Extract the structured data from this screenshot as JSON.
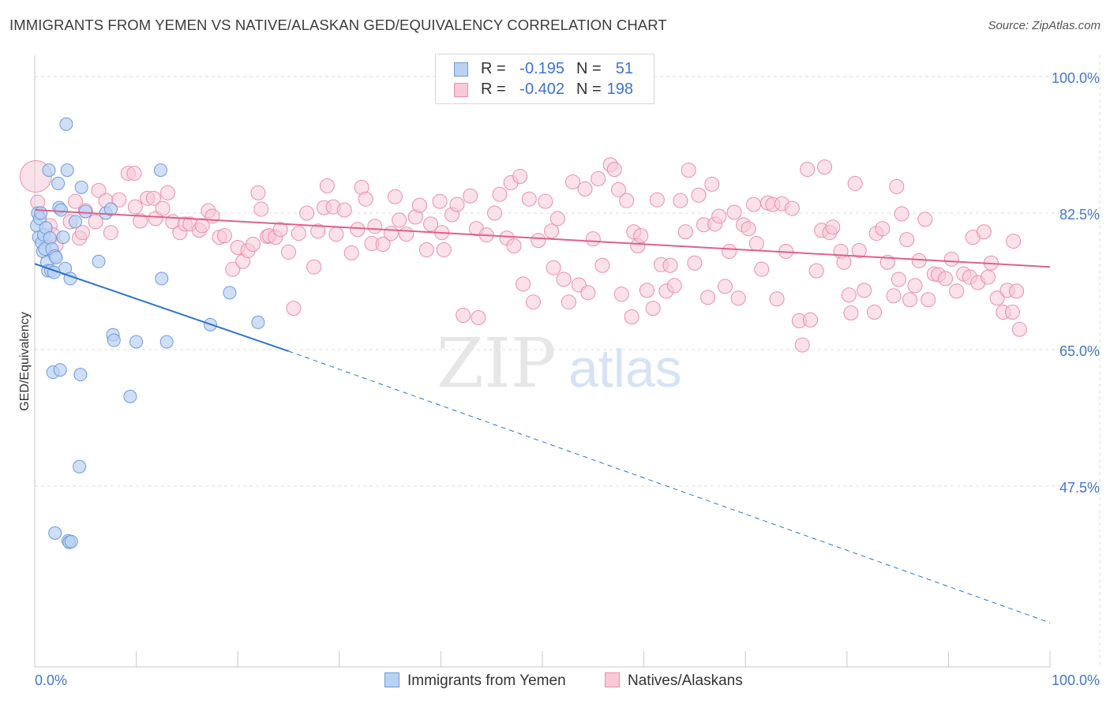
{
  "title": "IMMIGRANTS FROM YEMEN VS NATIVE/ALASKAN GED/EQUIVALENCY CORRELATION CHART",
  "source": "Source: ZipAtlas.com",
  "watermark": {
    "zip": "ZIP",
    "atlas": "atlas"
  },
  "legend": {
    "series1": {
      "r_label": "R =",
      "r_value": "-0.195",
      "n_label": "N =",
      "n_value": "51"
    },
    "series2": {
      "r_label": "R =",
      "r_value": "-0.402",
      "n_label": "N =",
      "n_value": "198"
    }
  },
  "bottom_legend": {
    "series1": "Immigrants from Yemen",
    "series2": "Natives/Alaskans"
  },
  "x_axis": {
    "min_label": "0.0%",
    "max_label": "100.0%"
  },
  "chart_data": {
    "type": "scatter",
    "ylabel": "GED/Equivalency",
    "xlim": [
      0,
      100
    ],
    "ylim": [
      30,
      103
    ],
    "y_ticks": [
      {
        "value": 100.0,
        "label": "100.0%"
      },
      {
        "value": 82.5,
        "label": "82.5%"
      },
      {
        "value": 65.0,
        "label": "65.0%"
      },
      {
        "value": 47.5,
        "label": "47.5%"
      }
    ],
    "grid": true,
    "legend_position": "top-center",
    "colors": {
      "blue_fill": "#b9d2f3",
      "blue_stroke": "#6f9ad9",
      "blue_line": "#2f74d0",
      "pink_fill": "#f8c9d7",
      "pink_stroke": "#ea8fab",
      "pink_line": "#e0608a",
      "grid": "#dddddd",
      "axis_label": "#4477cc"
    },
    "trendlines": [
      {
        "series": "Immigrants from Yemen",
        "x": [
          0,
          25
        ],
        "y": [
          76.0,
          64.8
        ],
        "dashed_extension_to": [
          100,
          30.0
        ]
      },
      {
        "series": "Natives/Alaskans",
        "x": [
          0,
          100
        ],
        "y": [
          82.9,
          75.6
        ]
      }
    ],
    "series": [
      {
        "name": "Immigrants from Yemen",
        "points": [
          [
            0.2,
            80.9
          ],
          [
            0.3,
            82.5
          ],
          [
            0.4,
            79.4
          ],
          [
            0.5,
            81.8
          ],
          [
            0.6,
            82.5
          ],
          [
            0.7,
            78.7
          ],
          [
            0.8,
            77.6
          ],
          [
            0.9,
            79.7
          ],
          [
            1.0,
            77.9
          ],
          [
            1.1,
            80.6
          ],
          [
            1.2,
            76.2
          ],
          [
            1.3,
            75.1
          ],
          [
            1.4,
            88.0
          ],
          [
            1.5,
            79.3
          ],
          [
            1.6,
            75.1
          ],
          [
            1.7,
            77.9
          ],
          [
            1.8,
            62.1
          ],
          [
            1.9,
            74.9
          ],
          [
            2.0,
            77.0
          ],
          [
            2.1,
            76.8
          ],
          [
            2.3,
            86.3
          ],
          [
            2.4,
            83.2
          ],
          [
            2.5,
            62.4
          ],
          [
            2.6,
            82.9
          ],
          [
            2.8,
            79.4
          ],
          [
            3.0,
            75.4
          ],
          [
            3.1,
            93.9
          ],
          [
            3.2,
            88.0
          ],
          [
            3.3,
            40.5
          ],
          [
            3.4,
            40.3
          ],
          [
            3.5,
            74.1
          ],
          [
            3.6,
            40.4
          ],
          [
            2.0,
            41.5
          ],
          [
            4.0,
            81.4
          ],
          [
            4.5,
            61.8
          ],
          [
            4.6,
            85.8
          ],
          [
            4.4,
            50.0
          ],
          [
            6.3,
            76.3
          ],
          [
            7.0,
            82.5
          ],
          [
            7.7,
            66.9
          ],
          [
            7.8,
            66.2
          ],
          [
            9.4,
            59.0
          ],
          [
            10.0,
            66.0
          ],
          [
            12.4,
            88.0
          ],
          [
            12.5,
            74.1
          ],
          [
            13.0,
            66.0
          ],
          [
            17.3,
            68.2
          ],
          [
            19.2,
            72.3
          ],
          [
            22.0,
            68.5
          ],
          [
            7.5,
            83.0
          ],
          [
            5.0,
            82.7
          ]
        ]
      },
      {
        "name": "Natives/Alaskans",
        "points": [
          [
            0.1,
            87.2
          ],
          [
            0.3,
            83.9
          ],
          [
            1.5,
            80.9
          ],
          [
            1.8,
            79.7
          ],
          [
            2.1,
            78.4
          ],
          [
            3.5,
            81.4
          ],
          [
            4.0,
            84.0
          ],
          [
            4.4,
            79.3
          ],
          [
            4.7,
            80.0
          ],
          [
            5.0,
            82.8
          ],
          [
            6.0,
            81.4
          ],
          [
            6.3,
            85.4
          ],
          [
            7.0,
            84.1
          ],
          [
            7.5,
            80.0
          ],
          [
            8.3,
            84.2
          ],
          [
            9.2,
            87.6
          ],
          [
            9.8,
            87.6
          ],
          [
            9.9,
            83.3
          ],
          [
            10.4,
            81.5
          ],
          [
            11.1,
            84.4
          ],
          [
            11.7,
            84.4
          ],
          [
            11.9,
            81.8
          ],
          [
            12.6,
            83.1
          ],
          [
            13.1,
            85.1
          ],
          [
            13.6,
            81.4
          ],
          [
            14.3,
            80.0
          ],
          [
            14.8,
            81.1
          ],
          [
            15.3,
            81.1
          ],
          [
            16.2,
            80.3
          ],
          [
            16.5,
            80.9
          ],
          [
            17.1,
            82.8
          ],
          [
            17.5,
            82.1
          ],
          [
            18.2,
            79.4
          ],
          [
            18.7,
            79.6
          ],
          [
            19.5,
            75.3
          ],
          [
            20.0,
            78.1
          ],
          [
            20.5,
            76.3
          ],
          [
            21.0,
            77.7
          ],
          [
            21.5,
            78.5
          ],
          [
            22.0,
            85.1
          ],
          [
            22.3,
            83.0
          ],
          [
            22.9,
            79.5
          ],
          [
            23.1,
            79.6
          ],
          [
            23.7,
            79.4
          ],
          [
            24.2,
            80.4
          ],
          [
            25.0,
            77.5
          ],
          [
            25.5,
            70.3
          ],
          [
            26.0,
            79.9
          ],
          [
            26.8,
            82.5
          ],
          [
            27.5,
            75.6
          ],
          [
            27.9,
            80.2
          ],
          [
            28.5,
            83.2
          ],
          [
            28.8,
            86.0
          ],
          [
            29.4,
            83.3
          ],
          [
            29.7,
            79.8
          ],
          [
            30.5,
            82.9
          ],
          [
            31.2,
            77.4
          ],
          [
            31.8,
            80.4
          ],
          [
            32.2,
            85.8
          ],
          [
            32.6,
            84.3
          ],
          [
            33.2,
            78.6
          ],
          [
            33.5,
            80.8
          ],
          [
            34.3,
            78.5
          ],
          [
            35.1,
            79.9
          ],
          [
            35.5,
            84.6
          ],
          [
            35.9,
            81.6
          ],
          [
            36.6,
            79.8
          ],
          [
            37.5,
            82.0
          ],
          [
            37.9,
            83.5
          ],
          [
            38.6,
            77.8
          ],
          [
            39.0,
            81.1
          ],
          [
            39.9,
            84.0
          ],
          [
            40.1,
            80.0
          ],
          [
            40.3,
            77.8
          ],
          [
            41.1,
            82.3
          ],
          [
            41.6,
            83.6
          ],
          [
            42.2,
            69.4
          ],
          [
            42.9,
            84.7
          ],
          [
            43.5,
            80.5
          ],
          [
            43.7,
            69.1
          ],
          [
            44.5,
            79.7
          ],
          [
            45.3,
            82.5
          ],
          [
            45.8,
            84.9
          ],
          [
            46.5,
            79.3
          ],
          [
            46.9,
            86.4
          ],
          [
            47.2,
            78.3
          ],
          [
            47.8,
            87.2
          ],
          [
            48.1,
            73.4
          ],
          [
            48.7,
            84.3
          ],
          [
            49.1,
            71.1
          ],
          [
            49.6,
            79.0
          ],
          [
            50.3,
            84.0
          ],
          [
            50.9,
            80.2
          ],
          [
            51.1,
            75.5
          ],
          [
            51.5,
            81.8
          ],
          [
            52.1,
            74.0
          ],
          [
            52.6,
            71.1
          ],
          [
            53.0,
            86.5
          ],
          [
            53.6,
            73.3
          ],
          [
            54.2,
            85.6
          ],
          [
            54.5,
            72.3
          ],
          [
            55.0,
            79.2
          ],
          [
            55.5,
            86.9
          ],
          [
            55.9,
            75.8
          ],
          [
            56.7,
            88.7
          ],
          [
            57.1,
            88.1
          ],
          [
            57.5,
            85.5
          ],
          [
            57.8,
            72.1
          ],
          [
            58.3,
            84.1
          ],
          [
            58.8,
            69.2
          ],
          [
            59.0,
            80.1
          ],
          [
            59.4,
            78.3
          ],
          [
            59.7,
            79.6
          ],
          [
            60.3,
            72.6
          ],
          [
            60.9,
            70.3
          ],
          [
            61.3,
            84.2
          ],
          [
            61.7,
            75.9
          ],
          [
            62.2,
            72.5
          ],
          [
            62.6,
            75.8
          ],
          [
            63.0,
            73.2
          ],
          [
            63.6,
            84.1
          ],
          [
            64.1,
            80.1
          ],
          [
            64.4,
            88.0
          ],
          [
            65.0,
            76.1
          ],
          [
            65.4,
            84.8
          ],
          [
            65.9,
            81.0
          ],
          [
            66.3,
            71.7
          ],
          [
            66.7,
            86.2
          ],
          [
            67.0,
            81.1
          ],
          [
            67.4,
            82.1
          ],
          [
            68.0,
            73.1
          ],
          [
            68.4,
            77.6
          ],
          [
            68.9,
            82.6
          ],
          [
            69.3,
            71.6
          ],
          [
            69.8,
            81.0
          ],
          [
            70.3,
            80.5
          ],
          [
            70.8,
            83.6
          ],
          [
            71.1,
            78.6
          ],
          [
            71.6,
            75.3
          ],
          [
            72.2,
            83.8
          ],
          [
            72.7,
            83.6
          ],
          [
            73.1,
            71.5
          ],
          [
            73.6,
            83.7
          ],
          [
            74.0,
            77.6
          ],
          [
            74.6,
            83.1
          ],
          [
            75.3,
            68.7
          ],
          [
            75.6,
            65.6
          ],
          [
            76.1,
            88.1
          ],
          [
            76.4,
            68.8
          ],
          [
            77.0,
            75.1
          ],
          [
            77.5,
            80.3
          ],
          [
            77.8,
            88.4
          ],
          [
            78.3,
            80.0
          ],
          [
            78.6,
            80.7
          ],
          [
            79.4,
            77.6
          ],
          [
            79.7,
            76.2
          ],
          [
            80.2,
            72.0
          ],
          [
            80.4,
            69.7
          ],
          [
            80.8,
            86.3
          ],
          [
            81.2,
            77.7
          ],
          [
            81.7,
            72.6
          ],
          [
            82.7,
            69.8
          ],
          [
            82.9,
            79.9
          ],
          [
            83.5,
            80.5
          ],
          [
            84.0,
            76.2
          ],
          [
            84.6,
            71.9
          ],
          [
            84.9,
            85.9
          ],
          [
            85.1,
            74.0
          ],
          [
            85.4,
            82.4
          ],
          [
            85.9,
            79.1
          ],
          [
            86.2,
            71.4
          ],
          [
            86.7,
            73.2
          ],
          [
            87.1,
            76.4
          ],
          [
            87.7,
            81.7
          ],
          [
            88.0,
            71.4
          ],
          [
            88.6,
            74.7
          ],
          [
            89.0,
            74.6
          ],
          [
            89.7,
            74.1
          ],
          [
            90.3,
            76.6
          ],
          [
            90.8,
            72.5
          ],
          [
            91.5,
            74.7
          ],
          [
            92.1,
            74.3
          ],
          [
            92.4,
            79.4
          ],
          [
            92.9,
            73.6
          ],
          [
            93.5,
            80.1
          ],
          [
            93.9,
            74.3
          ],
          [
            94.2,
            76.1
          ],
          [
            94.8,
            71.6
          ],
          [
            95.4,
            69.8
          ],
          [
            95.8,
            72.6
          ],
          [
            96.3,
            69.8
          ],
          [
            96.7,
            72.5
          ],
          [
            97.0,
            67.6
          ],
          [
            96.4,
            78.9
          ]
        ]
      }
    ]
  }
}
